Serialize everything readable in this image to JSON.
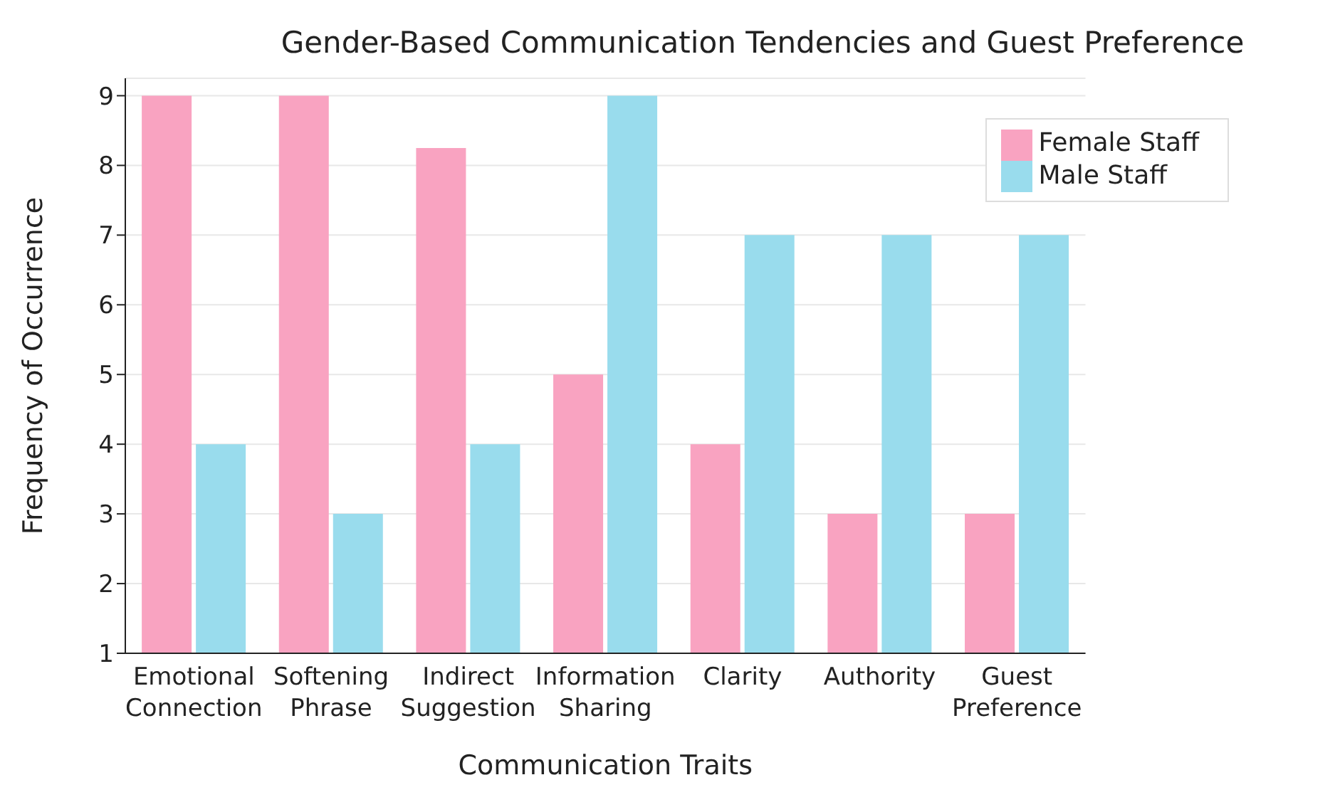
{
  "chart_data": {
    "type": "bar",
    "title": "Gender-Based Communication Tendencies and Guest Preference",
    "xlabel": "Communication Traits",
    "ylabel": "Frequency of Occurrence",
    "categories": [
      "Emotional Connection",
      "Softening Phrase",
      "Indirect Suggestion",
      "Information Sharing",
      "Clarity",
      "Authority",
      "Guest Preference"
    ],
    "series": [
      {
        "name": "Female Staff",
        "color": "#f9a3c1",
        "values": [
          9,
          9,
          8.25,
          5,
          4,
          3,
          3
        ]
      },
      {
        "name": "Male Staff",
        "color": "#99dced",
        "values": [
          4,
          3,
          4,
          9,
          7,
          7,
          7
        ]
      }
    ],
    "ylim": [
      1,
      9.25
    ],
    "yticks": [
      1,
      2,
      3,
      4,
      5,
      6,
      7,
      8,
      9
    ],
    "grid": "y",
    "legend": "top right"
  }
}
